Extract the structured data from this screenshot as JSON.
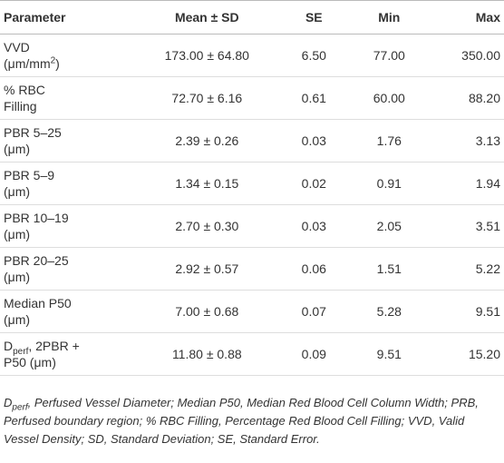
{
  "table": {
    "header": [
      "Parameter",
      "Mean ± SD",
      "SE",
      "Min",
      "Max"
    ],
    "rows": [
      [
        [
          [
            {
              "text": "VVD"
            }
          ],
          [
            {
              "text": "(μm/mm"
            },
            {
              "sup": "2"
            },
            {
              "text": ")"
            }
          ]
        ],
        "173.00 ± 64.80",
        "6.50",
        "77.00",
        "350.00"
      ],
      [
        [
          [
            {
              "text": "% RBC"
            }
          ],
          [
            {
              "text": "Filling"
            }
          ]
        ],
        "72.70 ± 6.16",
        "0.61",
        "60.00",
        "88.20"
      ],
      [
        [
          [
            {
              "text": "PBR 5–25"
            }
          ],
          [
            {
              "text": "(μm)"
            }
          ]
        ],
        "2.39 ± 0.26",
        "0.03",
        "1.76",
        "3.13"
      ],
      [
        [
          [
            {
              "text": "PBR 5–9"
            }
          ],
          [
            {
              "text": "(μm)"
            }
          ]
        ],
        "1.34 ± 0.15",
        "0.02",
        "0.91",
        "1.94"
      ],
      [
        [
          [
            {
              "text": "PBR 10–19"
            }
          ],
          [
            {
              "text": "(μm)"
            }
          ]
        ],
        "2.70 ± 0.30",
        "0.03",
        "2.05",
        "3.51"
      ],
      [
        [
          [
            {
              "text": "PBR 20–25"
            }
          ],
          [
            {
              "text": "(μm)"
            }
          ]
        ],
        "2.92 ± 0.57",
        "0.06",
        "1.51",
        "5.22"
      ],
      [
        [
          [
            {
              "text": "Median P50"
            }
          ],
          [
            {
              "text": "(μm)"
            }
          ]
        ],
        "7.00 ± 0.68",
        "0.07",
        "5.28",
        "9.51"
      ],
      [
        [
          [
            {
              "text": "D"
            },
            {
              "sub": "perf"
            },
            {
              "text": ", 2PBR +"
            }
          ],
          [
            {
              "text": "P50 (μm)"
            }
          ]
        ],
        "11.80 ± 0.88",
        "0.09",
        "9.51",
        "15.20"
      ]
    ],
    "footnote": [
      {
        "text": "D"
      },
      {
        "sub": "perf"
      },
      {
        "text": ", Perfused Vessel Diameter; Median P50, Median Red Blood Cell Column Width; PRB, Perfused boundary region; % RBC Filling, Percentage Red Blood Cell Filling; VVD, Valid Vessel Density; SD, Standard Deviation; SE, Standard Error."
      }
    ]
  }
}
